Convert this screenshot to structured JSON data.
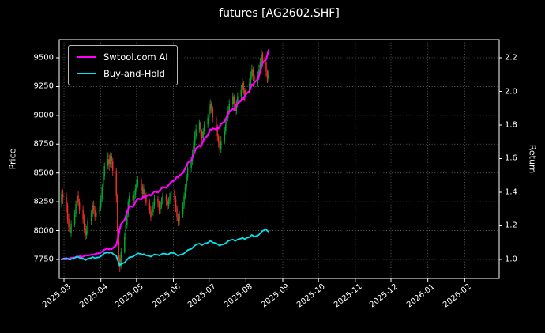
{
  "title": "futures [AG2602.SHF]",
  "colors": {
    "background": "#000000",
    "text": "#ffffff",
    "grid": "#6f6f6f",
    "spine": "#ffffff",
    "ai_line": "#ff00ff",
    "bh_line": "#00e5ee",
    "candle_up": "#00a82d",
    "candle_down": "#ee2c2c",
    "legend_border": "#b9b9b9"
  },
  "legend": {
    "items": [
      {
        "label": "Swtool.com AI",
        "color": "#ff00ff"
      },
      {
        "label": "Buy-and-Hold",
        "color": "#00e5ee"
      }
    ]
  },
  "chart_data": {
    "type": "candlestick+line",
    "title": "futures [AG2602.SHF]",
    "ylabel_left": "Price",
    "ylabel_right": "Return",
    "grid": "dotted",
    "legend_position": "upper-left",
    "x_range": [
      "2025-02-25",
      "2026-03-02"
    ],
    "x_ticks": [
      "2025-03",
      "2025-04",
      "2025-05",
      "2025-06",
      "2025-07",
      "2025-08",
      "2025-09",
      "2025-10",
      "2025-11",
      "2025-12",
      "2026-01",
      "2026-02"
    ],
    "price_ticks": [
      7750,
      8000,
      8250,
      8500,
      8750,
      9000,
      9250,
      9500
    ],
    "price_range": [
      7585,
      9658
    ],
    "return_ticks": [
      1.0,
      1.2,
      1.4,
      1.6,
      1.8,
      2.0,
      2.2
    ],
    "return_to_price": {
      "anchor_return": 1.0,
      "anchor_price": 7750,
      "price_per_return": 1458.333
    },
    "candles_format": [
      "date",
      "open",
      "high",
      "low",
      "close"
    ],
    "candles": [
      [
        "2025-02-27",
        8240,
        8350,
        8200,
        8320
      ],
      [
        "2025-02-28",
        8320,
        8360,
        8230,
        8290
      ],
      [
        "2025-03-03",
        8290,
        8330,
        8160,
        8210
      ],
      [
        "2025-03-04",
        8210,
        8240,
        8060,
        8100
      ],
      [
        "2025-03-05",
        8100,
        8150,
        7990,
        8030
      ],
      [
        "2025-03-06",
        8030,
        8080,
        7940,
        7980
      ],
      [
        "2025-03-07",
        7980,
        8090,
        7950,
        8060
      ],
      [
        "2025-03-10",
        8060,
        8180,
        8030,
        8150
      ],
      [
        "2025-03-11",
        8150,
        8260,
        8120,
        8230
      ],
      [
        "2025-03-12",
        8230,
        8330,
        8200,
        8300
      ],
      [
        "2025-03-13",
        8300,
        8340,
        8210,
        8250
      ],
      [
        "2025-03-14",
        8250,
        8280,
        8140,
        8180
      ],
      [
        "2025-03-17",
        8180,
        8220,
        8060,
        8100
      ],
      [
        "2025-03-18",
        8100,
        8140,
        7980,
        8020
      ],
      [
        "2025-03-19",
        8020,
        8060,
        7920,
        7960
      ],
      [
        "2025-03-20",
        7960,
        8040,
        7930,
        8000
      ],
      [
        "2025-03-21",
        8000,
        8110,
        7970,
        8080
      ],
      [
        "2025-03-24",
        8080,
        8180,
        8050,
        8150
      ],
      [
        "2025-03-25",
        8150,
        8250,
        8120,
        8220
      ],
      [
        "2025-03-26",
        8220,
        8260,
        8140,
        8180
      ],
      [
        "2025-03-27",
        8180,
        8210,
        8080,
        8120
      ],
      [
        "2025-03-28",
        8120,
        8200,
        8090,
        8160
      ],
      [
        "2025-03-31",
        8160,
        8240,
        8130,
        8200
      ],
      [
        "2025-04-01",
        8200,
        8310,
        8170,
        8280
      ],
      [
        "2025-04-02",
        8280,
        8410,
        8250,
        8380
      ],
      [
        "2025-04-03",
        8380,
        8500,
        8350,
        8470
      ],
      [
        "2025-04-04",
        8470,
        8590,
        8440,
        8560
      ],
      [
        "2025-04-07",
        8560,
        8680,
        8530,
        8620
      ],
      [
        "2025-04-08",
        8620,
        8660,
        8520,
        8580
      ],
      [
        "2025-04-09",
        8580,
        8680,
        8550,
        8650
      ],
      [
        "2025-04-10",
        8650,
        8670,
        8540,
        8600
      ],
      [
        "2025-04-11",
        8600,
        8630,
        8470,
        8520
      ],
      [
        "2025-04-14",
        8520,
        8540,
        8240,
        8300
      ],
      [
        "2025-04-15",
        8300,
        8320,
        7940,
        8000
      ],
      [
        "2025-04-16",
        8000,
        8020,
        7680,
        7750
      ],
      [
        "2025-04-17",
        7750,
        7790,
        7640,
        7700
      ],
      [
        "2025-04-18",
        7700,
        7850,
        7670,
        7820
      ],
      [
        "2025-04-21",
        7820,
        7980,
        7800,
        7950
      ],
      [
        "2025-04-22",
        7950,
        8080,
        7920,
        8050
      ],
      [
        "2025-04-23",
        8050,
        8180,
        8020,
        8150
      ],
      [
        "2025-04-24",
        8150,
        8280,
        8120,
        8250
      ],
      [
        "2025-04-25",
        8250,
        8330,
        8220,
        8300
      ],
      [
        "2025-04-28",
        8300,
        8330,
        8220,
        8260
      ],
      [
        "2025-04-29",
        8260,
        8340,
        8230,
        8310
      ],
      [
        "2025-04-30",
        8310,
        8400,
        8280,
        8360
      ],
      [
        "2025-05-01",
        8360,
        8440,
        8330,
        8400
      ],
      [
        "2025-05-02",
        8400,
        8470,
        8370,
        8440
      ],
      [
        "2025-05-05",
        8440,
        8460,
        8340,
        8380
      ],
      [
        "2025-05-06",
        8380,
        8410,
        8290,
        8320
      ],
      [
        "2025-05-07",
        8320,
        8400,
        8300,
        8360
      ],
      [
        "2025-05-08",
        8360,
        8380,
        8260,
        8300
      ],
      [
        "2025-05-09",
        8300,
        8330,
        8210,
        8240
      ],
      [
        "2025-05-12",
        8240,
        8270,
        8140,
        8180
      ],
      [
        "2025-05-13",
        8180,
        8210,
        8080,
        8120
      ],
      [
        "2025-05-14",
        8120,
        8200,
        8090,
        8160
      ],
      [
        "2025-05-15",
        8160,
        8250,
        8130,
        8220
      ],
      [
        "2025-05-16",
        8220,
        8310,
        8190,
        8280
      ],
      [
        "2025-05-19",
        8280,
        8300,
        8200,
        8240
      ],
      [
        "2025-05-20",
        8240,
        8260,
        8140,
        8180
      ],
      [
        "2025-05-21",
        8180,
        8250,
        8150,
        8220
      ],
      [
        "2025-05-22",
        8220,
        8290,
        8190,
        8260
      ],
      [
        "2025-05-23",
        8260,
        8330,
        8230,
        8300
      ],
      [
        "2025-05-26",
        8300,
        8320,
        8220,
        8260
      ],
      [
        "2025-05-27",
        8260,
        8280,
        8180,
        8220
      ],
      [
        "2025-05-28",
        8220,
        8290,
        8190,
        8260
      ],
      [
        "2025-05-29",
        8260,
        8330,
        8230,
        8300
      ],
      [
        "2025-05-30",
        8300,
        8370,
        8270,
        8340
      ],
      [
        "2025-06-02",
        8340,
        8360,
        8240,
        8280
      ],
      [
        "2025-06-03",
        8280,
        8300,
        8160,
        8200
      ],
      [
        "2025-06-04",
        8200,
        8220,
        8080,
        8120
      ],
      [
        "2025-06-05",
        8120,
        8150,
        8040,
        8080
      ],
      [
        "2025-06-06",
        8080,
        8170,
        8050,
        8140
      ],
      [
        "2025-06-09",
        8140,
        8250,
        8110,
        8220
      ],
      [
        "2025-06-10",
        8220,
        8330,
        8190,
        8300
      ],
      [
        "2025-06-11",
        8300,
        8410,
        8270,
        8380
      ],
      [
        "2025-06-12",
        8380,
        8490,
        8350,
        8460
      ],
      [
        "2025-06-13",
        8460,
        8570,
        8430,
        8540
      ],
      [
        "2025-06-16",
        8540,
        8640,
        8510,
        8600
      ],
      [
        "2025-06-17",
        8600,
        8700,
        8570,
        8660
      ],
      [
        "2025-06-18",
        8660,
        8780,
        8630,
        8740
      ],
      [
        "2025-06-19",
        8740,
        8860,
        8710,
        8820
      ],
      [
        "2025-06-20",
        8820,
        8920,
        8790,
        8880
      ],
      [
        "2025-06-23",
        8880,
        8960,
        8850,
        8940
      ],
      [
        "2025-06-24",
        8940,
        8950,
        8820,
        8860
      ],
      [
        "2025-06-25",
        8860,
        8880,
        8760,
        8800
      ],
      [
        "2025-06-26",
        8800,
        8890,
        8770,
        8860
      ],
      [
        "2025-06-27",
        8860,
        8950,
        8830,
        8920
      ],
      [
        "2025-06-30",
        8920,
        9010,
        8890,
        8980
      ],
      [
        "2025-07-01",
        8980,
        9080,
        8950,
        9040
      ],
      [
        "2025-07-02",
        9040,
        9140,
        9010,
        9100
      ],
      [
        "2025-07-03",
        9100,
        9120,
        9020,
        9060
      ],
      [
        "2025-07-04",
        9060,
        9080,
        8940,
        8980
      ],
      [
        "2025-07-07",
        8980,
        9000,
        8860,
        8900
      ],
      [
        "2025-07-08",
        8900,
        8920,
        8780,
        8820
      ],
      [
        "2025-07-09",
        8820,
        8840,
        8720,
        8760
      ],
      [
        "2025-07-10",
        8760,
        8780,
        8650,
        8700
      ],
      [
        "2025-07-11",
        8700,
        8820,
        8670,
        8780
      ],
      [
        "2025-07-14",
        8780,
        8900,
        8750,
        8860
      ],
      [
        "2025-07-15",
        8860,
        8960,
        8830,
        8920
      ],
      [
        "2025-07-16",
        8920,
        9020,
        8890,
        8980
      ],
      [
        "2025-07-17",
        8980,
        9080,
        8950,
        9040
      ],
      [
        "2025-07-18",
        9040,
        9140,
        9010,
        9100
      ],
      [
        "2025-07-21",
        9100,
        9200,
        9070,
        9160
      ],
      [
        "2025-07-22",
        9160,
        9180,
        9060,
        9100
      ],
      [
        "2025-07-23",
        9100,
        9120,
        9000,
        9040
      ],
      [
        "2025-07-24",
        9040,
        9140,
        9010,
        9100
      ],
      [
        "2025-07-25",
        9100,
        9200,
        9070,
        9160
      ],
      [
        "2025-07-28",
        9160,
        9260,
        9130,
        9220
      ],
      [
        "2025-07-29",
        9220,
        9320,
        9190,
        9280
      ],
      [
        "2025-07-30",
        9280,
        9300,
        9180,
        9220
      ],
      [
        "2025-07-31",
        9220,
        9240,
        9120,
        9160
      ],
      [
        "2025-08-01",
        9160,
        9260,
        9130,
        9220
      ],
      [
        "2025-08-04",
        9220,
        9320,
        9190,
        9280
      ],
      [
        "2025-08-05",
        9280,
        9380,
        9250,
        9340
      ],
      [
        "2025-08-06",
        9340,
        9440,
        9310,
        9400
      ],
      [
        "2025-08-07",
        9400,
        9420,
        9300,
        9340
      ],
      [
        "2025-08-08",
        9340,
        9360,
        9240,
        9280
      ],
      [
        "2025-08-11",
        9280,
        9380,
        9250,
        9340
      ],
      [
        "2025-08-12",
        9340,
        9440,
        9310,
        9400
      ],
      [
        "2025-08-13",
        9400,
        9500,
        9370,
        9460
      ],
      [
        "2025-08-14",
        9460,
        9570,
        9430,
        9530
      ],
      [
        "2025-08-15",
        9530,
        9550,
        9420,
        9460
      ],
      [
        "2025-08-18",
        9460,
        9480,
        9340,
        9380
      ],
      [
        "2025-08-19",
        9380,
        9400,
        9280,
        9320
      ],
      [
        "2025-08-20",
        9320,
        9390,
        9290,
        9350
      ]
    ],
    "series": [
      {
        "name": "Swtool.com AI",
        "axis": "return",
        "color": "#ff00ff",
        "width": 2.2,
        "values": [
          1.0,
          1.001,
          1.0,
          1.003,
          1.006,
          1.004,
          1.008,
          1.011,
          1.014,
          1.017,
          1.015,
          1.018,
          1.016,
          1.02,
          1.023,
          1.025,
          1.023,
          1.027,
          1.03,
          1.028,
          1.031,
          1.034,
          1.037,
          1.041,
          1.046,
          1.052,
          1.058,
          1.063,
          1.059,
          1.065,
          1.061,
          1.067,
          1.085,
          1.115,
          1.15,
          1.185,
          1.21,
          1.235,
          1.258,
          1.28,
          1.3,
          1.318,
          1.312,
          1.326,
          1.34,
          1.352,
          1.362,
          1.357,
          1.366,
          1.374,
          1.368,
          1.377,
          1.385,
          1.38,
          1.388,
          1.396,
          1.404,
          1.399,
          1.407,
          1.415,
          1.423,
          1.431,
          1.426,
          1.434,
          1.443,
          1.452,
          1.461,
          1.47,
          1.482,
          1.494,
          1.488,
          1.5,
          1.514,
          1.528,
          1.543,
          1.558,
          1.574,
          1.59,
          1.607,
          1.624,
          1.642,
          1.66,
          1.678,
          1.67,
          1.686,
          1.702,
          1.72,
          1.738,
          1.756,
          1.774,
          1.768,
          1.78,
          1.774,
          1.786,
          1.78,
          1.792,
          1.806,
          1.82,
          1.835,
          1.85,
          1.865,
          1.88,
          1.896,
          1.89,
          1.902,
          1.916,
          1.93,
          1.945,
          1.96,
          1.954,
          1.968,
          1.984,
          2.002,
          2.022,
          2.042,
          2.036,
          2.052,
          2.072,
          2.094,
          2.118,
          2.144,
          2.168,
          2.192,
          2.216,
          2.245
        ]
      },
      {
        "name": "Buy-and-Hold",
        "axis": "return",
        "color": "#00e5ee",
        "width": 1.8,
        "values": [
          1.0,
          1.004,
          1.008,
          1.004,
          1.0,
          0.997,
          1.002,
          1.008,
          1.013,
          1.018,
          1.014,
          1.01,
          1.005,
          1.0,
          0.996,
          0.999,
          1.004,
          1.009,
          1.014,
          1.011,
          1.007,
          1.01,
          1.013,
          1.018,
          1.025,
          1.031,
          1.037,
          1.041,
          1.038,
          1.043,
          1.04,
          1.034,
          1.02,
          0.999,
          0.98,
          0.964,
          0.972,
          0.981,
          0.99,
          0.998,
          1.006,
          1.012,
          1.016,
          1.021,
          1.026,
          1.03,
          1.036,
          1.032,
          1.028,
          1.032,
          1.028,
          1.024,
          1.02,
          1.016,
          1.02,
          1.025,
          1.03,
          1.027,
          1.023,
          1.027,
          1.031,
          1.035,
          1.032,
          1.028,
          1.032,
          1.036,
          1.04,
          1.036,
          1.031,
          1.026,
          1.022,
          1.026,
          1.031,
          1.036,
          1.042,
          1.048,
          1.055,
          1.062,
          1.068,
          1.075,
          1.082,
          1.088,
          1.094,
          1.089,
          1.085,
          1.089,
          1.094,
          1.099,
          1.104,
          1.11,
          1.106,
          1.101,
          1.096,
          1.091,
          1.086,
          1.081,
          1.086,
          1.092,
          1.097,
          1.102,
          1.108,
          1.113,
          1.118,
          1.114,
          1.109,
          1.114,
          1.119,
          1.124,
          1.13,
          1.125,
          1.12,
          1.126,
          1.132,
          1.139,
          1.146,
          1.141,
          1.136,
          1.142,
          1.148,
          1.155,
          1.163,
          1.17,
          1.178,
          1.17,
          1.165
        ]
      }
    ]
  }
}
